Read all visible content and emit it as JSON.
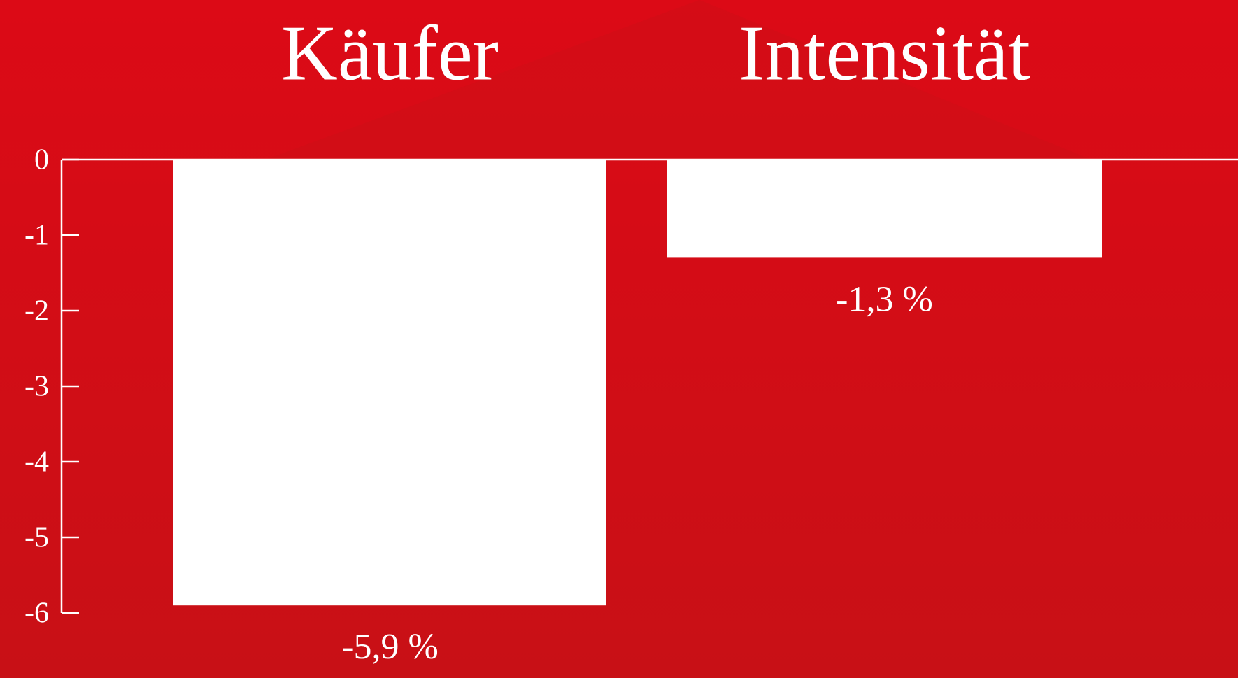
{
  "chart_data": {
    "type": "bar",
    "categories": [
      "Käufer",
      "Intensität"
    ],
    "values": [
      -5.9,
      -1.3
    ],
    "value_labels": [
      "-5,9 %",
      "-1,3 %"
    ],
    "color": "#ffffff",
    "ylim": [
      -6,
      0
    ],
    "yticks": [
      0,
      -1,
      -2,
      -3,
      -4,
      -5,
      -6
    ]
  }
}
